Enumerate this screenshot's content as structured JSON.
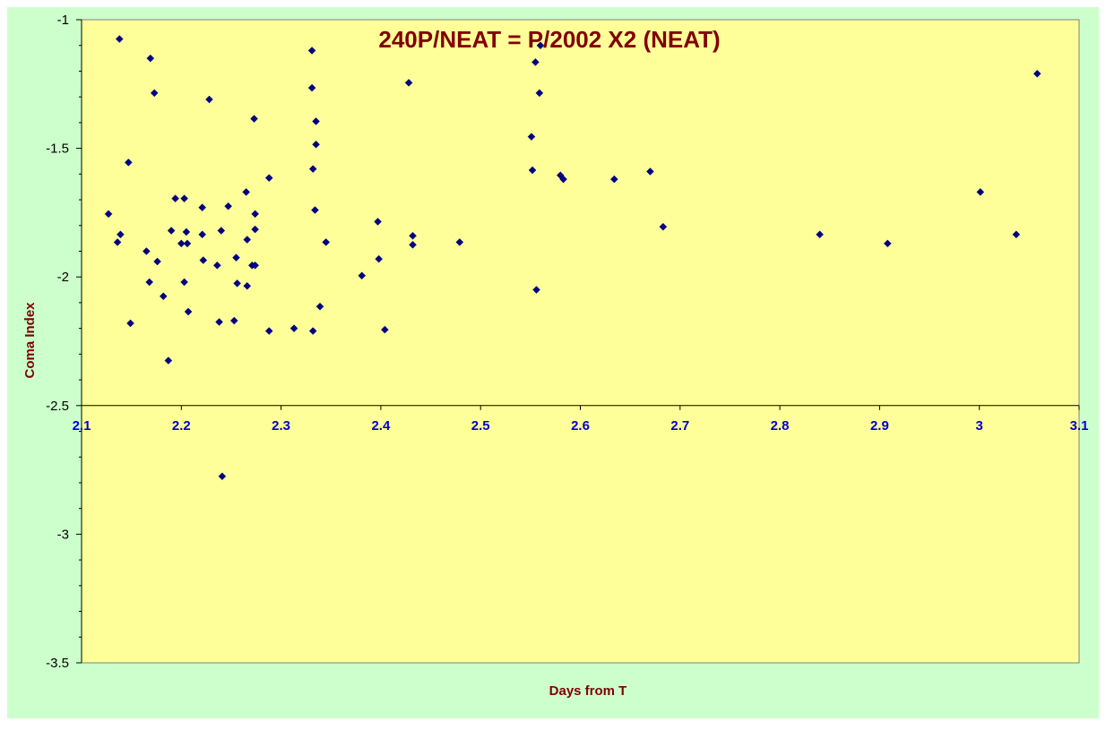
{
  "colors": {
    "outer_background": "#ccffcc",
    "plot_background": "#ffff99",
    "marker": "#000080",
    "title": "#800000",
    "x_tick": "#0000cc",
    "y_tick": "#000000"
  },
  "chart_data": {
    "type": "scatter",
    "title": "240P/NEAT = P/2002 X2 (NEAT)",
    "xlabel": "Days from T",
    "ylabel": "Coma Index",
    "xlim": [
      2.1,
      3.1
    ],
    "ylim": [
      -3.5,
      -1
    ],
    "x_ticks": [
      "2.1",
      "2.2",
      "2.3",
      "2.4",
      "2.5",
      "2.6",
      "2.7",
      "2.8",
      "2.9",
      "3",
      "3.1"
    ],
    "x_tick_values": [
      2.1,
      2.2,
      2.3,
      2.4,
      2.5,
      2.6,
      2.7,
      2.8,
      2.9,
      3.0,
      3.1
    ],
    "y_ticks": [
      "-1",
      "-1.5",
      "-2",
      "-2.5",
      "-3",
      "-3.5"
    ],
    "y_tick_values": [
      -1,
      -1.5,
      -2,
      -2.5,
      -3,
      -3.5
    ],
    "x_axis_crosses_at": -2.5,
    "grid": false,
    "legend": "none",
    "marker": "diamond",
    "points": [
      [
        2.127,
        -1.755
      ],
      [
        2.136,
        -1.865
      ],
      [
        2.138,
        -1.075
      ],
      [
        2.139,
        -1.835
      ],
      [
        2.147,
        -1.555
      ],
      [
        2.149,
        -2.18
      ],
      [
        2.165,
        -1.9
      ],
      [
        2.168,
        -2.02
      ],
      [
        2.169,
        -1.15
      ],
      [
        2.173,
        -1.285
      ],
      [
        2.176,
        -1.94
      ],
      [
        2.182,
        -2.075
      ],
      [
        2.187,
        -2.325
      ],
      [
        2.19,
        -1.82
      ],
      [
        2.194,
        -1.695
      ],
      [
        2.2,
        -1.87
      ],
      [
        2.203,
        -1.695
      ],
      [
        2.203,
        -2.02
      ],
      [
        2.205,
        -1.825
      ],
      [
        2.206,
        -1.87
      ],
      [
        2.207,
        -2.135
      ],
      [
        2.221,
        -1.73
      ],
      [
        2.221,
        -1.835
      ],
      [
        2.222,
        -1.935
      ],
      [
        2.228,
        -1.31
      ],
      [
        2.236,
        -1.955
      ],
      [
        2.238,
        -2.175
      ],
      [
        2.24,
        -1.82
      ],
      [
        2.241,
        -2.775
      ],
      [
        2.247,
        -1.725
      ],
      [
        2.253,
        -2.17
      ],
      [
        2.255,
        -1.925
      ],
      [
        2.256,
        -2.025
      ],
      [
        2.265,
        -1.67
      ],
      [
        2.266,
        -1.855
      ],
      [
        2.266,
        -2.035
      ],
      [
        2.271,
        -1.955
      ],
      [
        2.273,
        -1.385
      ],
      [
        2.274,
        -1.955
      ],
      [
        2.274,
        -1.755
      ],
      [
        2.274,
        -1.815
      ],
      [
        2.288,
        -1.615
      ],
      [
        2.288,
        -2.21
      ],
      [
        2.313,
        -2.2
      ],
      [
        2.331,
        -1.12
      ],
      [
        2.331,
        -1.265
      ],
      [
        2.332,
        -1.58
      ],
      [
        2.332,
        -2.21
      ],
      [
        2.334,
        -1.74
      ],
      [
        2.335,
        -1.395
      ],
      [
        2.335,
        -1.485
      ],
      [
        2.339,
        -2.115
      ],
      [
        2.345,
        -1.865
      ],
      [
        2.381,
        -1.995
      ],
      [
        2.397,
        -1.785
      ],
      [
        2.398,
        -1.93
      ],
      [
        2.404,
        -2.205
      ],
      [
        2.428,
        -1.245
      ],
      [
        2.432,
        -1.84
      ],
      [
        2.432,
        -1.875
      ],
      [
        2.479,
        -1.865
      ],
      [
        2.551,
        -1.455
      ],
      [
        2.552,
        -1.585
      ],
      [
        2.555,
        -1.165
      ],
      [
        2.556,
        -2.05
      ],
      [
        2.559,
        -1.285
      ],
      [
        2.56,
        -1.1
      ],
      [
        2.58,
        -1.605
      ],
      [
        2.583,
        -1.62
      ],
      [
        2.634,
        -1.62
      ],
      [
        2.67,
        -1.59
      ],
      [
        2.683,
        -1.805
      ],
      [
        2.84,
        -1.835
      ],
      [
        2.908,
        -1.87
      ],
      [
        3.001,
        -1.67
      ],
      [
        3.037,
        -1.835
      ],
      [
        3.058,
        -1.21
      ]
    ]
  }
}
